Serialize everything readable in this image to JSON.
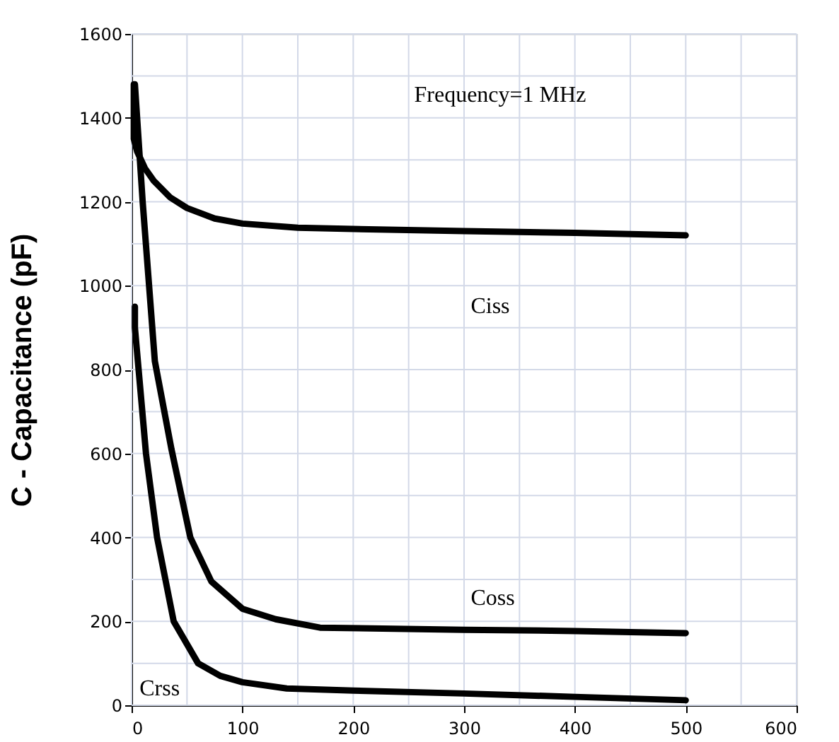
{
  "chart_data": {
    "type": "line",
    "ylabel": "C - Capacitance (pF)",
    "xlim": [
      0,
      600
    ],
    "ylim": [
      0,
      1600
    ],
    "xticks": [
      0,
      {
        "value": 50,
        "label": null
      },
      100,
      {
        "value": 150,
        "label": null
      },
      200,
      {
        "value": 250,
        "label": null
      },
      300,
      {
        "value": 350,
        "label": null
      },
      400,
      {
        "value": 450,
        "label": null
      },
      500,
      {
        "value": 550,
        "label": null
      },
      600
    ],
    "yticks": [
      0,
      {
        "value": 100,
        "label": null
      },
      200,
      {
        "value": 300,
        "label": null
      },
      400,
      {
        "value": 500,
        "label": null
      },
      600,
      {
        "value": 700,
        "label": null
      },
      800,
      {
        "value": 900,
        "label": null
      },
      1000,
      {
        "value": 1100,
        "label": null
      },
      1200,
      {
        "value": 1300,
        "label": null
      },
      1400,
      {
        "value": 1500,
        "label": null
      },
      1600
    ],
    "grid": true,
    "line_style": "solid",
    "marker": "none",
    "series": [
      {
        "color": "#000000",
        "x": [
          2,
          2,
          5,
          12,
          20,
          35,
          50,
          75,
          100,
          150,
          200,
          300,
          400,
          500
        ],
        "values": [
          1480,
          1350,
          1320,
          1280,
          1250,
          1210,
          1185,
          1160,
          1148,
          1138,
          1135,
          1130,
          1126,
          1120
        ]
      },
      {
        "color": "#000000",
        "x": [
          3,
          10,
          21,
          36,
          53,
          72,
          100,
          130,
          170,
          300,
          400,
          500
        ],
        "values": [
          1480,
          1200,
          820,
          610,
          400,
          295,
          230,
          205,
          185,
          180,
          177,
          172
        ]
      },
      {
        "color": "#000000",
        "x": [
          3,
          3,
          8,
          13,
          23,
          38,
          60,
          80,
          100,
          140,
          200,
          300,
          400,
          500
        ],
        "values": [
          950,
          900,
          750,
          600,
          400,
          200,
          100,
          70,
          55,
          40,
          35,
          28,
          20,
          12
        ]
      }
    ],
    "annotations": [
      "Frequency=1 MHz",
      "Ciss",
      "Coss",
      "Crss"
    ]
  }
}
